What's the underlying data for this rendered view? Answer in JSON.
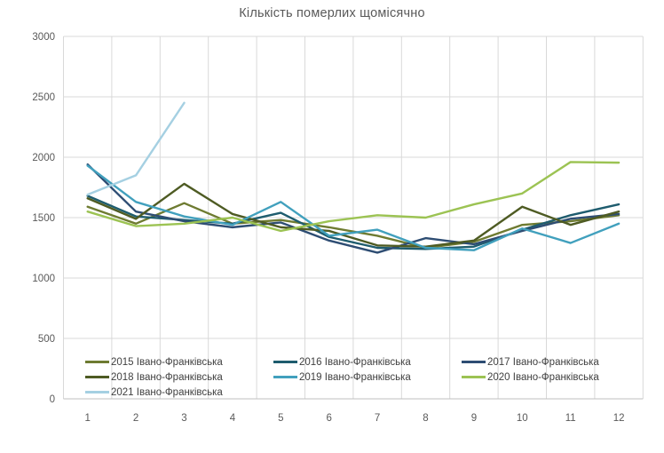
{
  "chart": {
    "title": "Кількість померлих щомісячно"
  },
  "chart_data": {
    "type": "line",
    "title": "Кількість померлих щомісячно",
    "xlabel": "",
    "ylabel": "",
    "x": [
      1,
      2,
      3,
      4,
      5,
      6,
      7,
      8,
      9,
      10,
      11,
      12
    ],
    "x_tick_labels": [
      "1",
      "2",
      "3",
      "4",
      "5",
      "6",
      "7",
      "8",
      "9",
      "10",
      "11",
      "12"
    ],
    "ylim": [
      0,
      3000
    ],
    "y_ticks": [
      0,
      500,
      1000,
      1500,
      2000,
      2500,
      3000
    ],
    "grid": true,
    "legend_position": "bottom-left",
    "series": [
      {
        "name": "2015 Івано-Франківська",
        "color": "#6e7b31",
        "values": [
          1590,
          1450,
          1620,
          1450,
          1480,
          1420,
          1350,
          1250,
          1300,
          1440,
          1470,
          1520
        ]
      },
      {
        "name": "2016 Івано-Франківська",
        "color": "#1e5c6e",
        "values": [
          1680,
          1510,
          1480,
          1450,
          1540,
          1340,
          1250,
          1240,
          1260,
          1400,
          1520,
          1610
        ]
      },
      {
        "name": "2017 Івано-Франківська",
        "color": "#2e4d73",
        "values": [
          1940,
          1550,
          1470,
          1420,
          1460,
          1310,
          1210,
          1330,
          1280,
          1390,
          1490,
          1530
        ]
      },
      {
        "name": "2018 Івано-Франківська",
        "color": "#4e5b23",
        "values": [
          1660,
          1490,
          1780,
          1530,
          1420,
          1390,
          1270,
          1260,
          1310,
          1590,
          1440,
          1550
        ]
      },
      {
        "name": "2019 Івано-Франківська",
        "color": "#41a0bd",
        "values": [
          1930,
          1630,
          1510,
          1440,
          1630,
          1350,
          1400,
          1250,
          1230,
          1410,
          1290,
          1450
        ]
      },
      {
        "name": "2020 Івано-Франківська",
        "color": "#9cc353",
        "values": [
          1550,
          1430,
          1450,
          1500,
          1390,
          1470,
          1520,
          1500,
          1610,
          1700,
          1960,
          1955
        ]
      },
      {
        "name": "2021 Івано-Франківська",
        "color": "#a5d0e2",
        "values": [
          1690,
          1850,
          2450
        ]
      }
    ]
  },
  "colors": {
    "title_text": "#595959",
    "axis_text": "#595959",
    "legend_text": "#404040",
    "gridline": "#d9d9d9",
    "axis_line": "#bfbfbf"
  }
}
